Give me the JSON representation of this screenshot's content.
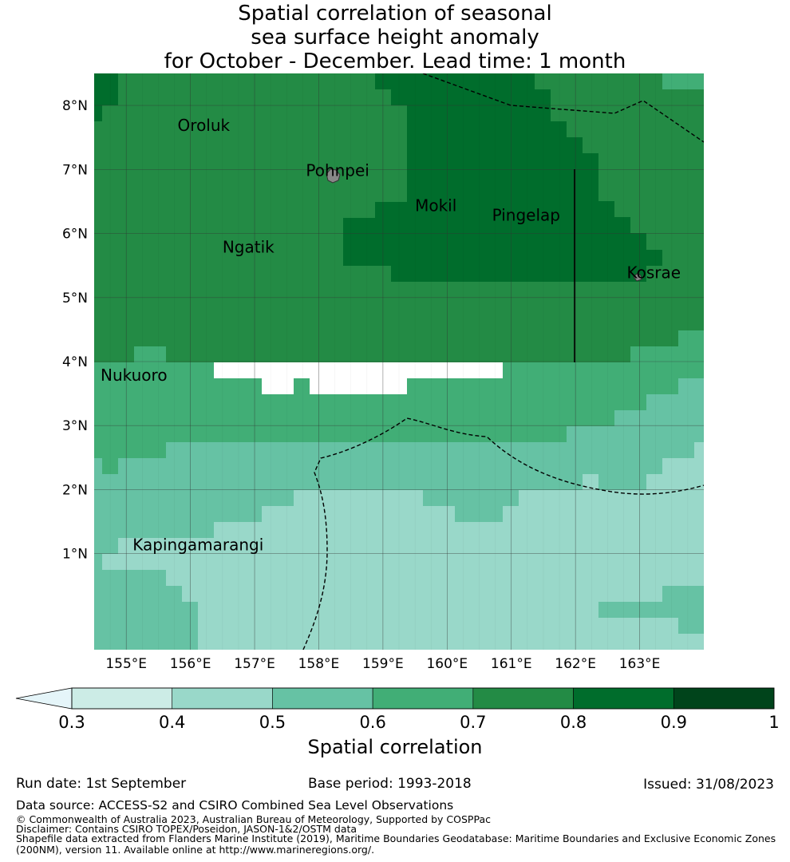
{
  "title": {
    "line1": "Spatial correlation of seasonal",
    "line2": "sea surface height anomaly",
    "line3": "for October - December. Lead time: 1 month"
  },
  "colors": {
    "c0": "#e5f5f9",
    "c1": "#ccece6",
    "c2": "#99d8c9",
    "c3": "#66c2a4",
    "c4": "#41ae76",
    "c5": "#238b45",
    "c6": "#006d2c",
    "c7": "#00441b",
    "grid": "#333333",
    "land": "#888888"
  },
  "map": {
    "lon_range": [
      154.5,
      164
    ],
    "lat_range": [
      -0.5,
      8.5
    ],
    "lat_ticks": [
      {
        "v": 8,
        "label": "8°N"
      },
      {
        "v": 7,
        "label": "7°N"
      },
      {
        "v": 6,
        "label": "6°N"
      },
      {
        "v": 5,
        "label": "5°N"
      },
      {
        "v": 4,
        "label": "4°N"
      },
      {
        "v": 3,
        "label": "3°N"
      },
      {
        "v": 2,
        "label": "2°N"
      },
      {
        "v": 1,
        "label": "1°N"
      }
    ],
    "lon_ticks": [
      {
        "v": 155,
        "label": "155°E"
      },
      {
        "v": 156,
        "label": "156°E"
      },
      {
        "v": 157,
        "label": "157°E"
      },
      {
        "v": 158,
        "label": "158°E"
      },
      {
        "v": 159,
        "label": "159°E"
      },
      {
        "v": 160,
        "label": "160°E"
      },
      {
        "v": 161,
        "label": "161°E"
      },
      {
        "v": 162,
        "label": "162°E"
      },
      {
        "v": 163,
        "label": "163°E"
      }
    ],
    "places": [
      {
        "name": "Oroluk",
        "lon": 155.8,
        "lat": 7.6
      },
      {
        "name": "Pohnpei",
        "lon": 157.8,
        "lat": 6.9
      },
      {
        "name": "Mokil",
        "lon": 159.5,
        "lat": 6.35
      },
      {
        "name": "Pingelap",
        "lon": 160.7,
        "lat": 6.2
      },
      {
        "name": "Ngatik",
        "lon": 156.5,
        "lat": 5.7
      },
      {
        "name": "Kosrae",
        "lon": 162.8,
        "lat": 5.3
      },
      {
        "name": "Nukuoro",
        "lon": 154.6,
        "lat": 3.7
      },
      {
        "name": "Kapingamarangi",
        "lon": 155.1,
        "lat": 1.05
      }
    ]
  },
  "colorbar": {
    "ticks": [
      "0.3",
      "0.4",
      "0.5",
      "0.6",
      "0.7",
      "0.8",
      "0.9",
      "1"
    ],
    "label": "Spatial correlation"
  },
  "footer": {
    "run_date": "Run date: 1st September",
    "base_period": "Base period: 1993-2018",
    "issued": "Issued: 31/08/2023",
    "data_source": "Data source: ACCESS-S2 and CSIRO Combined Sea Level Observations",
    "copyright": "© Commonwealth of Australia 2023, Australian Bureau of Meteorology, Supported by COSPPac",
    "disclaimer": "Disclaimer: Contains CSIRO TOPEX/Poseidon, JASON-1&2/OSTM data",
    "shapefile1": "Shapefile data extracted from Flanders Marine Institute (2019), Maritime Boundaries Geodatabase: Maritime Boundaries and Exclusive Economic Zones",
    "shapefile2": "(200NM), version 11. Available online at http://www.marineregions.org/."
  }
}
